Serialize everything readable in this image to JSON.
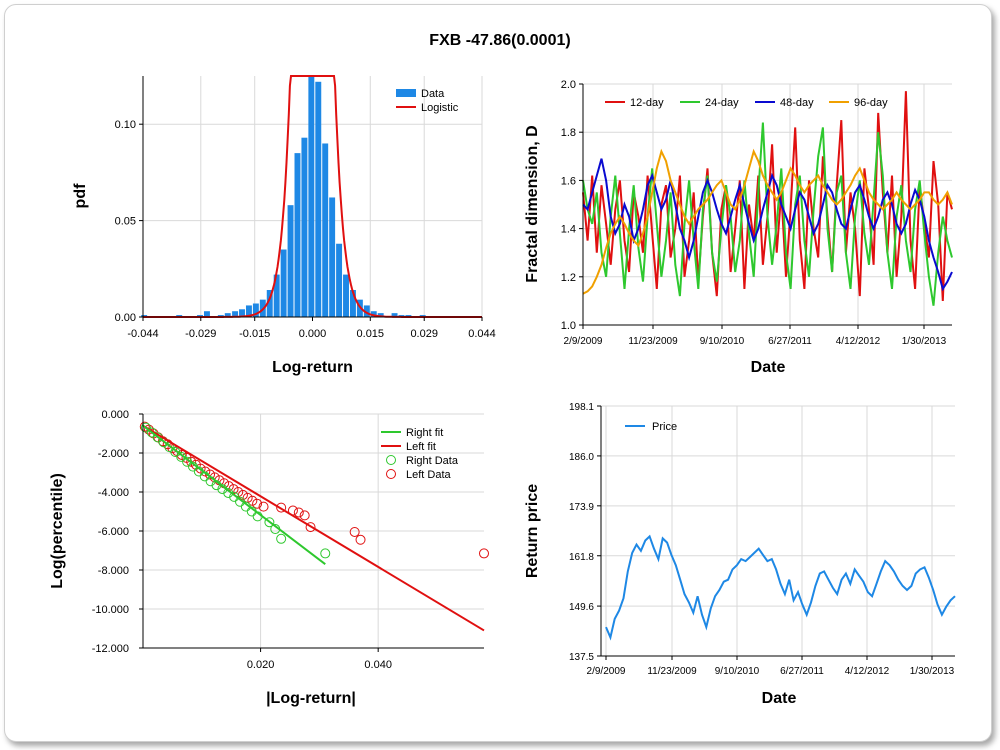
{
  "title": "FXB -47.86(0.0001)",
  "colors": {
    "blue": "#1e88e5",
    "red": "#e01010",
    "green": "#2ec82e",
    "navy": "#0a0ad0",
    "orange": "#f0a000",
    "grid": "#d9d9d9"
  },
  "chart_data": [
    {
      "type": "bar",
      "xlabel": "Log-return",
      "ylabel": "pdf",
      "xlim": [
        -0.044,
        0.044
      ],
      "ylim": [
        0,
        0.125
      ],
      "xticks": [
        "-0.044",
        "-0.029",
        "-0.015",
        "0.000",
        "0.015",
        "0.029",
        "0.044"
      ],
      "yticks": [
        "0.00",
        "0.05",
        "0.10"
      ],
      "legend": [
        "Data",
        "Logistic"
      ],
      "bin_width": 0.0018,
      "bin_centers": [
        -0.0437,
        -0.0346,
        -0.0292,
        -0.0274,
        -0.0238,
        -0.022,
        -0.0201,
        -0.0183,
        -0.0165,
        -0.0147,
        -0.0129,
        -0.0111,
        -0.0093,
        -0.0075,
        -0.0057,
        -0.0039,
        -0.0021,
        -0.0003,
        0.0015,
        0.0033,
        0.0051,
        0.0069,
        0.0087,
        0.0105,
        0.0123,
        0.0141,
        0.0159,
        0.0177,
        0.0213,
        0.0231,
        0.0249,
        0.0286
      ],
      "values": [
        0.001,
        0.001,
        0.001,
        0.003,
        0.001,
        0.002,
        0.003,
        0.004,
        0.006,
        0.007,
        0.009,
        0.014,
        0.022,
        0.035,
        0.058,
        0.085,
        0.093,
        0.125,
        0.122,
        0.09,
        0.062,
        0.038,
        0.022,
        0.014,
        0.009,
        0.006,
        0.003,
        0.002,
        0.002,
        0.001,
        0.001,
        0.001
      ],
      "logistic": {
        "mu": 0.0,
        "s": 0.002
      }
    },
    {
      "type": "line",
      "xlabel": "Date",
      "ylabel": "Fractal dimension, D",
      "ylim": [
        1.0,
        2.0
      ],
      "xticks": [
        "2/9/2009",
        "11/23/2009",
        "9/10/2010",
        "6/27/2011",
        "4/12/2012",
        "1/30/2013"
      ],
      "yticks": [
        "1.0",
        "1.2",
        "1.4",
        "1.6",
        "1.8",
        "2.0"
      ],
      "series": [
        {
          "name": "12-day",
          "values": [
            1.55,
            1.35,
            1.62,
            1.3,
            1.58,
            1.42,
            1.25,
            1.48,
            1.6,
            1.35,
            1.22,
            1.55,
            1.45,
            1.3,
            1.62,
            1.38,
            1.15,
            1.5,
            1.58,
            1.28,
            1.4,
            1.62,
            1.2,
            1.35,
            1.55,
            1.18,
            1.45,
            1.65,
            1.3,
            1.12,
            1.48,
            1.58,
            1.22,
            1.4,
            1.6,
            1.15,
            1.5,
            1.35,
            1.62,
            1.25,
            1.45,
            1.75,
            1.3,
            1.55,
            1.2,
            1.48,
            1.82,
            1.35,
            1.15,
            1.6,
            1.4,
            1.28,
            1.7,
            1.45,
            1.22,
            1.58,
            1.85,
            1.3,
            1.55,
            1.4,
            1.12,
            1.65,
            1.48,
            1.25,
            1.88,
            1.55,
            1.3,
            1.62,
            1.2,
            1.45,
            1.97,
            1.35,
            1.15,
            1.58,
            1.42,
            1.28,
            1.68,
            1.5,
            1.1,
            1.55,
            1.48
          ]
        },
        {
          "name": "24-day",
          "values": [
            1.6,
            1.48,
            1.42,
            1.55,
            1.3,
            1.2,
            1.45,
            1.62,
            1.38,
            1.15,
            1.4,
            1.58,
            1.32,
            1.18,
            1.45,
            1.65,
            1.42,
            1.2,
            1.35,
            1.55,
            1.25,
            1.12,
            1.42,
            1.6,
            1.35,
            1.15,
            1.48,
            1.62,
            1.3,
            1.18,
            1.4,
            1.58,
            1.45,
            1.22,
            1.35,
            1.6,
            1.38,
            1.2,
            1.55,
            1.84,
            1.45,
            1.25,
            1.42,
            1.65,
            1.3,
            1.15,
            1.5,
            1.62,
            1.35,
            1.2,
            1.48,
            1.7,
            1.82,
            1.4,
            1.22,
            1.55,
            1.62,
            1.3,
            1.15,
            1.45,
            1.6,
            1.38,
            1.25,
            1.52,
            1.8,
            1.62,
            1.3,
            1.15,
            1.45,
            1.58,
            1.35,
            1.22,
            1.48,
            1.6,
            1.38,
            1.2,
            1.08,
            1.3,
            1.45,
            1.35,
            1.28
          ]
        },
        {
          "name": "48-day",
          "values": [
            1.5,
            1.48,
            1.55,
            1.62,
            1.69,
            1.6,
            1.45,
            1.38,
            1.42,
            1.5,
            1.45,
            1.35,
            1.4,
            1.48,
            1.58,
            1.62,
            1.55,
            1.48,
            1.52,
            1.6,
            1.5,
            1.4,
            1.35,
            1.28,
            1.35,
            1.45,
            1.55,
            1.6,
            1.55,
            1.48,
            1.42,
            1.38,
            1.45,
            1.52,
            1.58,
            1.5,
            1.42,
            1.35,
            1.4,
            1.48,
            1.55,
            1.62,
            1.58,
            1.5,
            1.45,
            1.4,
            1.48,
            1.55,
            1.52,
            1.45,
            1.38,
            1.42,
            1.5,
            1.58,
            1.55,
            1.48,
            1.42,
            1.4,
            1.48,
            1.55,
            1.58,
            1.52,
            1.45,
            1.4,
            1.45,
            1.52,
            1.55,
            1.5,
            1.42,
            1.38,
            1.42,
            1.5,
            1.56,
            1.52,
            1.45,
            1.35,
            1.28,
            1.22,
            1.15,
            1.18,
            1.22
          ]
        },
        {
          "name": "96-day",
          "values": [
            1.13,
            1.14,
            1.16,
            1.2,
            1.25,
            1.32,
            1.38,
            1.42,
            1.45,
            1.42,
            1.38,
            1.35,
            1.33,
            1.38,
            1.45,
            1.55,
            1.65,
            1.72,
            1.68,
            1.6,
            1.55,
            1.5,
            1.45,
            1.42,
            1.45,
            1.48,
            1.5,
            1.52,
            1.55,
            1.58,
            1.6,
            1.55,
            1.5,
            1.48,
            1.52,
            1.58,
            1.65,
            1.72,
            1.68,
            1.62,
            1.58,
            1.55,
            1.52,
            1.55,
            1.6,
            1.65,
            1.62,
            1.58,
            1.55,
            1.58,
            1.6,
            1.62,
            1.58,
            1.55,
            1.52,
            1.5,
            1.52,
            1.55,
            1.58,
            1.62,
            1.65,
            1.6,
            1.55,
            1.52,
            1.5,
            1.48,
            1.5,
            1.52,
            1.55,
            1.52,
            1.5,
            1.48,
            1.5,
            1.52,
            1.55,
            1.55,
            1.52,
            1.5,
            1.52,
            1.55,
            1.5
          ]
        }
      ]
    },
    {
      "type": "scatter",
      "xlabel": "|Log-return|",
      "ylabel": "Log(percentile)",
      "xlim": [
        0.0,
        0.058
      ],
      "ylim": [
        -12.0,
        0.0
      ],
      "xticks": [
        "0.020",
        "0.040"
      ],
      "yticks": [
        "0.000",
        "-2.000",
        "-4.000",
        "-6.000",
        "-8.000",
        "-10.000",
        "-12.000"
      ],
      "legend": [
        "Right fit",
        "Left fit",
        "Right Data",
        "Left Data"
      ],
      "right_fit": {
        "x": [
          0.0,
          0.031
        ],
        "y": [
          -0.6,
          -7.7
        ]
      },
      "left_fit": {
        "x": [
          0.0,
          0.058
        ],
        "y": [
          -0.6,
          -11.1
        ]
      },
      "right_data": {
        "x": [
          0.0005,
          0.0015,
          0.0025,
          0.0035,
          0.0045,
          0.0055,
          0.0065,
          0.0075,
          0.0085,
          0.0095,
          0.0105,
          0.0115,
          0.0125,
          0.0135,
          0.0145,
          0.0155,
          0.0165,
          0.0175,
          0.0185,
          0.0195,
          0.0215,
          0.0225,
          0.0235,
          0.031
        ],
        "y": [
          -0.7,
          -0.95,
          -1.2,
          -1.45,
          -1.7,
          -1.95,
          -2.2,
          -2.45,
          -2.7,
          -2.95,
          -3.2,
          -3.45,
          -3.65,
          -3.85,
          -4.05,
          -4.25,
          -4.5,
          -4.75,
          -5.0,
          -5.25,
          -5.55,
          -5.9,
          -6.4,
          -7.15
        ]
      },
      "left_data": {
        "x": [
          0.0003,
          0.001,
          0.0018,
          0.0026,
          0.0034,
          0.0042,
          0.005,
          0.0058,
          0.0066,
          0.0074,
          0.0082,
          0.009,
          0.0098,
          0.0106,
          0.0114,
          0.0122,
          0.013,
          0.0138,
          0.0146,
          0.0154,
          0.0162,
          0.017,
          0.0178,
          0.0186,
          0.0194,
          0.0205,
          0.0235,
          0.0255,
          0.0265,
          0.0275,
          0.0285,
          0.036,
          0.037,
          0.058
        ],
        "y": [
          -0.65,
          -0.8,
          -1.0,
          -1.2,
          -1.4,
          -1.55,
          -1.75,
          -1.9,
          -2.1,
          -2.25,
          -2.45,
          -2.6,
          -2.8,
          -2.95,
          -3.1,
          -3.25,
          -3.4,
          -3.55,
          -3.7,
          -3.85,
          -4.0,
          -4.15,
          -4.3,
          -4.45,
          -4.6,
          -4.75,
          -4.8,
          -4.95,
          -5.05,
          -5.2,
          -5.8,
          -6.05,
          -6.45,
          -7.15
        ]
      }
    },
    {
      "type": "line",
      "xlabel": "Date",
      "ylabel": "Return price",
      "ylim": [
        137.5,
        198.1
      ],
      "xticks": [
        "2/9/2009",
        "11/23/2009",
        "9/10/2010",
        "6/27/2011",
        "4/12/2012",
        "1/30/2013"
      ],
      "yticks": [
        "198.1",
        "186.0",
        "173.9",
        "161.8",
        "149.6",
        "137.5"
      ],
      "series": [
        {
          "name": "Price",
          "values": [
            144.5,
            142.0,
            146.5,
            148.5,
            151.5,
            158.0,
            162.5,
            164.5,
            163.0,
            165.5,
            166.5,
            163.5,
            161.0,
            166.0,
            165.0,
            162.0,
            159.5,
            156.0,
            152.5,
            150.5,
            148.0,
            152.0,
            147.5,
            144.5,
            149.0,
            152.0,
            153.5,
            155.5,
            156.0,
            158.5,
            159.5,
            161.0,
            160.5,
            161.5,
            162.5,
            163.5,
            162.0,
            160.5,
            161.0,
            158.5,
            155.0,
            152.5,
            156.0,
            151.0,
            153.0,
            150.0,
            147.5,
            150.5,
            154.5,
            157.5,
            158.0,
            156.0,
            154.0,
            152.5,
            156.0,
            157.5,
            155.0,
            158.5,
            157.0,
            155.5,
            153.0,
            152.0,
            155.0,
            158.0,
            160.5,
            159.5,
            158.0,
            156.0,
            154.5,
            153.5,
            154.5,
            157.5,
            158.5,
            159.0,
            156.5,
            153.5,
            150.0,
            147.5,
            149.5,
            151.0,
            152.0
          ]
        }
      ],
      "legend": [
        "Price"
      ]
    }
  ]
}
